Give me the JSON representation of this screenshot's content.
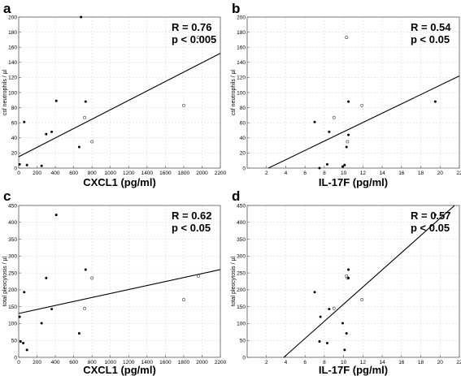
{
  "chart_data": [
    {
      "panel": "a",
      "type": "scatter",
      "xlabel": "CXCL1 (pg/ml)",
      "ylabel": "csf neutrophils / µl",
      "xlim": [
        0,
        2200
      ],
      "ylim": [
        0,
        200
      ],
      "xticks": [
        0,
        200,
        400,
        600,
        800,
        1000,
        1200,
        1400,
        1600,
        1800,
        2000,
        2200
      ],
      "yticks": [
        0,
        20,
        40,
        60,
        80,
        100,
        120,
        140,
        160,
        180,
        200
      ],
      "stat_r": "R = 0.76",
      "stat_p": "p < 0.005",
      "fit": {
        "x": [
          0,
          2200
        ],
        "y": [
          15,
          152
        ]
      },
      "points": [
        {
          "x": 10,
          "y": 5,
          "open": false
        },
        {
          "x": 60,
          "y": 61,
          "open": false
        },
        {
          "x": 90,
          "y": 4,
          "open": false
        },
        {
          "x": 250,
          "y": 3,
          "open": false
        },
        {
          "x": 300,
          "y": 45,
          "open": false
        },
        {
          "x": 360,
          "y": 48,
          "open": false
        },
        {
          "x": 410,
          "y": 89,
          "open": false
        },
        {
          "x": 660,
          "y": 28,
          "open": false
        },
        {
          "x": 680,
          "y": 200,
          "open": false
        },
        {
          "x": 730,
          "y": 88,
          "open": false
        },
        {
          "x": 720,
          "y": 67,
          "open": true
        },
        {
          "x": 800,
          "y": 35,
          "open": true
        },
        {
          "x": 1800,
          "y": 83,
          "open": true
        },
        {
          "x": 1960,
          "y": 173,
          "open": true
        }
      ]
    },
    {
      "panel": "b",
      "type": "scatter",
      "xlabel": "IL-17F (pg/ml)",
      "ylabel": "csf neutrophils / µl",
      "xlim": [
        0,
        22
      ],
      "ylim": [
        0,
        200
      ],
      "xticks": [
        2,
        4,
        6,
        8,
        10,
        12,
        14,
        16,
        18,
        20,
        22
      ],
      "yticks": [
        0,
        20,
        40,
        60,
        80,
        100,
        120,
        140,
        160,
        180,
        200
      ],
      "stat_r": "R = 0.54",
      "stat_p": "p < 0.05",
      "fit": {
        "x": [
          2.2,
          22
        ],
        "y": [
          0,
          122
        ]
      },
      "points": [
        {
          "x": 7.0,
          "y": 61,
          "open": false
        },
        {
          "x": 7.5,
          "y": 0,
          "open": false
        },
        {
          "x": 8.3,
          "y": 5,
          "open": false
        },
        {
          "x": 8.5,
          "y": 48,
          "open": false
        },
        {
          "x": 9.0,
          "y": 67,
          "open": true
        },
        {
          "x": 9.9,
          "y": 2,
          "open": false
        },
        {
          "x": 10.1,
          "y": 4,
          "open": false
        },
        {
          "x": 10.3,
          "y": 28,
          "open": false
        },
        {
          "x": 10.3,
          "y": 173,
          "open": true
        },
        {
          "x": 10.4,
          "y": 35,
          "open": true
        },
        {
          "x": 10.5,
          "y": 44,
          "open": false
        },
        {
          "x": 10.5,
          "y": 88,
          "open": false
        },
        {
          "x": 11.9,
          "y": 83,
          "open": true
        },
        {
          "x": 19.5,
          "y": 88,
          "open": false
        }
      ]
    },
    {
      "panel": "c",
      "type": "scatter",
      "xlabel": "CXCL1 (pg/ml)",
      "ylabel": "total pleocytosis / µl",
      "xlim": [
        0,
        2200
      ],
      "ylim": [
        0,
        450
      ],
      "xticks": [
        0,
        200,
        400,
        600,
        800,
        1000,
        1200,
        1400,
        1600,
        1800,
        2000,
        2200
      ],
      "yticks": [
        0,
        50,
        100,
        150,
        200,
        250,
        300,
        350,
        400,
        450
      ],
      "stat_r": "R = 0.62",
      "stat_p": "p < 0.05",
      "fit": {
        "x": [
          0,
          2200
        ],
        "y": [
          130,
          260
        ]
      },
      "points": [
        {
          "x": 10,
          "y": 120,
          "open": false
        },
        {
          "x": 20,
          "y": 47,
          "open": false
        },
        {
          "x": 50,
          "y": 42,
          "open": false
        },
        {
          "x": 60,
          "y": 193,
          "open": false
        },
        {
          "x": 90,
          "y": 22,
          "open": false
        },
        {
          "x": 250,
          "y": 101,
          "open": false
        },
        {
          "x": 300,
          "y": 235,
          "open": false
        },
        {
          "x": 360,
          "y": 143,
          "open": false
        },
        {
          "x": 410,
          "y": 422,
          "open": false
        },
        {
          "x": 660,
          "y": 71,
          "open": false
        },
        {
          "x": 730,
          "y": 260,
          "open": false
        },
        {
          "x": 720,
          "y": 145,
          "open": true
        },
        {
          "x": 800,
          "y": 235,
          "open": true
        },
        {
          "x": 1800,
          "y": 171,
          "open": true
        },
        {
          "x": 1960,
          "y": 241,
          "open": true
        }
      ]
    },
    {
      "panel": "d",
      "type": "scatter",
      "xlabel": "IL-17F (pg/ml)",
      "ylabel": "total pleocytosis / µl",
      "xlim": [
        0,
        22
      ],
      "ylim": [
        0,
        450
      ],
      "xticks": [
        2,
        4,
        6,
        8,
        10,
        12,
        14,
        16,
        18,
        20,
        22
      ],
      "yticks": [
        0,
        50,
        100,
        150,
        200,
        250,
        300,
        350,
        400,
        450
      ],
      "stat_r": "R = 0.57",
      "stat_p": "p < 0.05",
      "fit": {
        "x": [
          3.8,
          21.5
        ],
        "y": [
          0,
          450
        ]
      },
      "points": [
        {
          "x": 7.0,
          "y": 193,
          "open": false
        },
        {
          "x": 7.5,
          "y": 47,
          "open": false
        },
        {
          "x": 7.6,
          "y": 120,
          "open": false
        },
        {
          "x": 8.3,
          "y": 42,
          "open": false
        },
        {
          "x": 8.5,
          "y": 143,
          "open": false
        },
        {
          "x": 9.0,
          "y": 145,
          "open": true
        },
        {
          "x": 9.9,
          "y": 101,
          "open": false
        },
        {
          "x": 10.1,
          "y": 22,
          "open": false
        },
        {
          "x": 10.3,
          "y": 71,
          "open": false
        },
        {
          "x": 10.3,
          "y": 241,
          "open": true
        },
        {
          "x": 10.4,
          "y": 235,
          "open": true
        },
        {
          "x": 10.5,
          "y": 235,
          "open": false
        },
        {
          "x": 10.5,
          "y": 260,
          "open": false
        },
        {
          "x": 11.9,
          "y": 171,
          "open": true
        },
        {
          "x": 19.5,
          "y": 422,
          "open": false
        }
      ]
    }
  ]
}
